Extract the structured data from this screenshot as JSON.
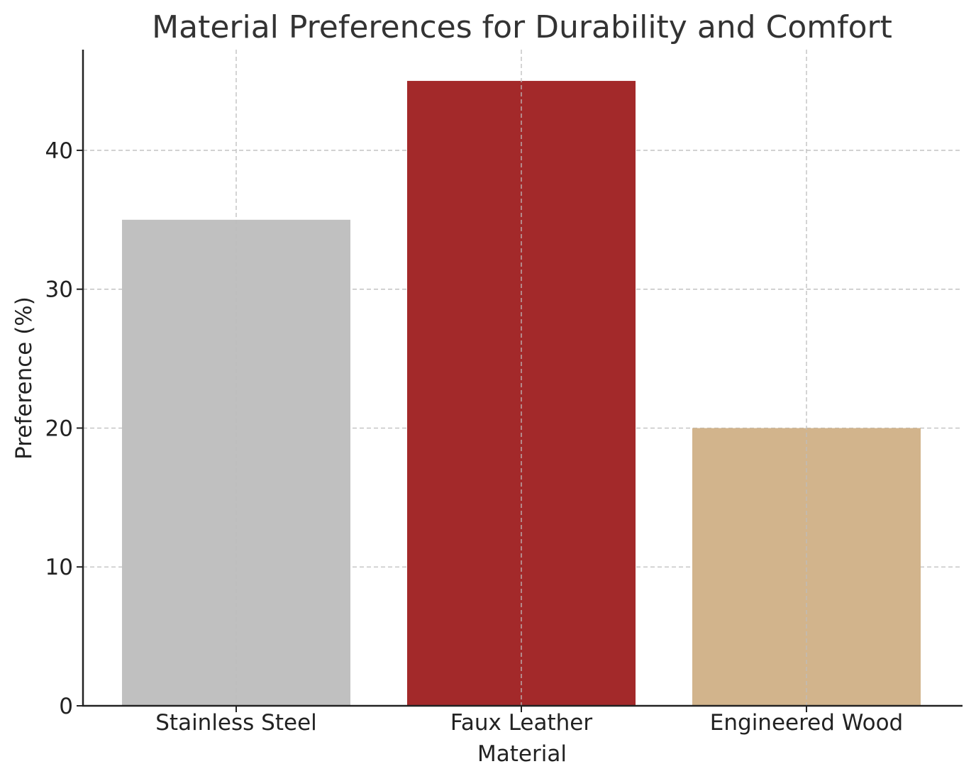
{
  "chart_data": {
    "type": "bar",
    "title": "Material Preferences for Durability and Comfort",
    "xlabel": "Material",
    "ylabel": "Preference (%)",
    "categories": [
      "Stainless Steel",
      "Faux Leather",
      "Engineered Wood"
    ],
    "values": [
      35,
      45,
      20
    ],
    "colors": [
      "#c0c0c0",
      "#a3292a",
      "#d2b48c"
    ],
    "ylim": [
      0,
      47.25
    ],
    "yticks": [
      0,
      10,
      20,
      30,
      40
    ],
    "ytick_labels": [
      "0",
      "10",
      "20",
      "30",
      "40"
    ],
    "grid": true,
    "grid_axes": "both",
    "spines": [
      "left",
      "bottom"
    ]
  }
}
